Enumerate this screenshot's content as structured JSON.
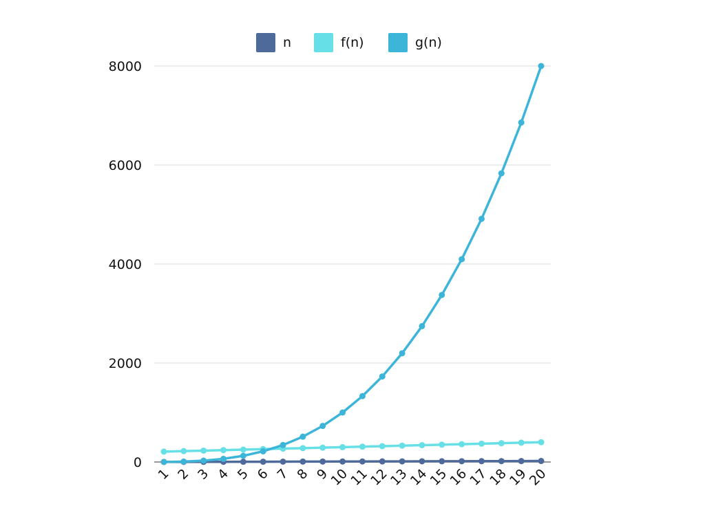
{
  "chart_data": {
    "type": "line",
    "title": "",
    "xlabel": "",
    "ylabel": "",
    "x": [
      1,
      2,
      3,
      4,
      5,
      6,
      7,
      8,
      9,
      10,
      11,
      12,
      13,
      14,
      15,
      16,
      17,
      18,
      19,
      20
    ],
    "ylim": [
      0,
      8000
    ],
    "yticks": [
      0,
      2000,
      4000,
      6000,
      8000
    ],
    "grid": true,
    "legend_position": "top-center",
    "series": [
      {
        "name": "n",
        "color": "#4e6a9a",
        "values": [
          1,
          2,
          3,
          4,
          5,
          6,
          7,
          8,
          9,
          10,
          11,
          12,
          13,
          14,
          15,
          16,
          17,
          18,
          19,
          20
        ]
      },
      {
        "name": "f(n)",
        "color": "#66e0e6",
        "values": [
          210,
          220,
          230,
          240,
          250,
          260,
          270,
          280,
          290,
          300,
          310,
          320,
          330,
          340,
          350,
          360,
          370,
          380,
          390,
          400
        ]
      },
      {
        "name": "g(n)",
        "color": "#3db5d8",
        "values": [
          1,
          8,
          27,
          64,
          125,
          216,
          343,
          512,
          729,
          1000,
          1331,
          1728,
          2197,
          2744,
          3375,
          4096,
          4913,
          5832,
          6859,
          8000
        ]
      }
    ]
  }
}
